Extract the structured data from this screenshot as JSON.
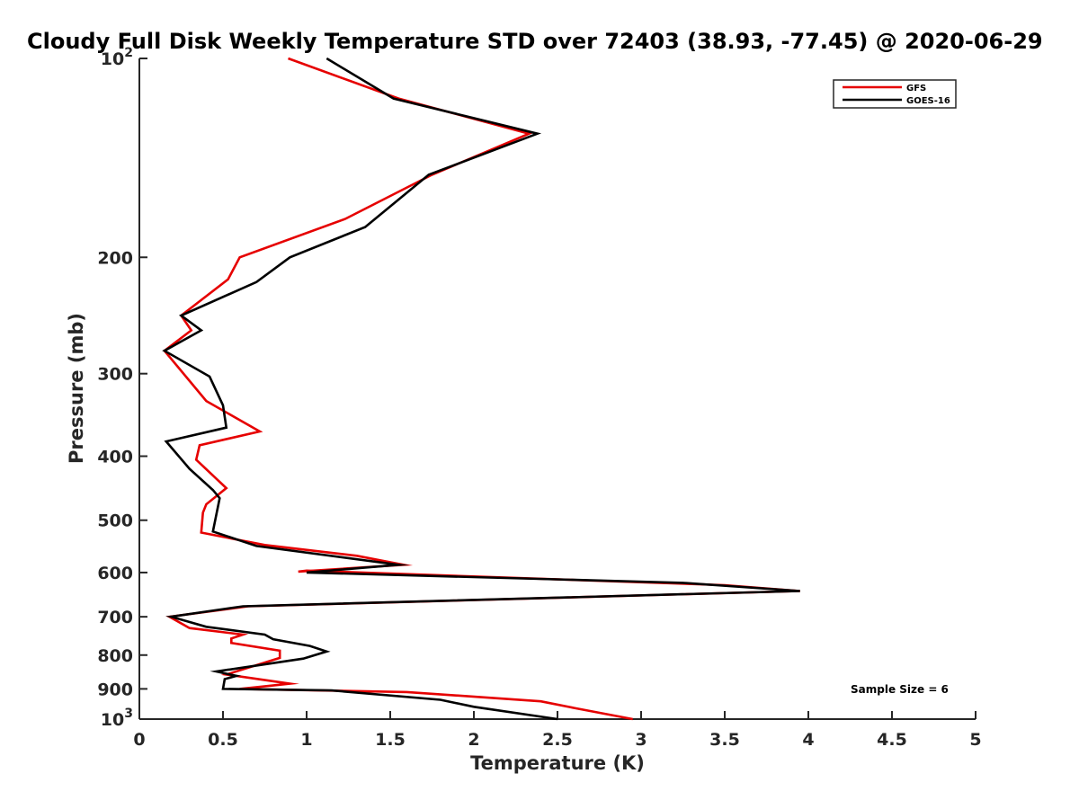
{
  "chart_data": {
    "type": "line",
    "title": "Cloudy Full Disk Weekly Temperature STD over 72403 (38.93, -77.45) @ 2020-06-29",
    "xlabel": "Temperature (K)",
    "ylabel": "Pressure (mb)",
    "xlim": [
      0,
      5
    ],
    "ylim": [
      100,
      1000
    ],
    "y_scale": "log",
    "y_reversed": true,
    "x_ticks": [
      "0",
      "0.5",
      "1",
      "1.5",
      "2",
      "2.5",
      "3",
      "3.5",
      "4",
      "4.5",
      "5"
    ],
    "y_ticks": [
      {
        "value": 100,
        "label": "10",
        "sup": "2"
      },
      {
        "value": 200,
        "label": "200",
        "sup": ""
      },
      {
        "value": 300,
        "label": "300",
        "sup": ""
      },
      {
        "value": 400,
        "label": "400",
        "sup": ""
      },
      {
        "value": 500,
        "label": "500",
        "sup": ""
      },
      {
        "value": 600,
        "label": "600",
        "sup": ""
      },
      {
        "value": 700,
        "label": "700",
        "sup": ""
      },
      {
        "value": 800,
        "label": "800",
        "sup": ""
      },
      {
        "value": 900,
        "label": "900",
        "sup": ""
      },
      {
        "value": 1000,
        "label": "10",
        "sup": "3"
      }
    ],
    "grid": false,
    "legend_position": "top-right",
    "annotation": "Sample Size = 6",
    "series": [
      {
        "name": "GFS",
        "color": "#e60000",
        "points": [
          [
            0.89,
            100
          ],
          [
            1.55,
            115
          ],
          [
            2.33,
            130
          ],
          [
            1.75,
            150
          ],
          [
            1.23,
            175
          ],
          [
            0.6,
            200
          ],
          [
            0.53,
            216
          ],
          [
            0.25,
            245
          ],
          [
            0.31,
            258
          ],
          [
            0.15,
            277
          ],
          [
            0.4,
            330
          ],
          [
            0.72,
            367
          ],
          [
            0.36,
            385
          ],
          [
            0.34,
            405
          ],
          [
            0.52,
            447
          ],
          [
            0.4,
            473
          ],
          [
            0.38,
            487
          ],
          [
            0.37,
            522
          ],
          [
            0.75,
            545
          ],
          [
            1.3,
            566
          ],
          [
            1.58,
            584
          ],
          [
            0.95,
            598
          ],
          [
            1.0,
            596
          ],
          [
            3.5,
            627
          ],
          [
            3.95,
            640
          ],
          [
            0.65,
            675
          ],
          [
            0.18,
            700
          ],
          [
            0.3,
            728
          ],
          [
            0.62,
            745
          ],
          [
            0.55,
            755
          ],
          [
            0.55,
            767
          ],
          [
            0.84,
            788
          ],
          [
            0.84,
            808
          ],
          [
            0.52,
            856
          ],
          [
            0.9,
            884
          ],
          [
            0.6,
            900
          ],
          [
            1.6,
            910
          ],
          [
            2.4,
            940
          ],
          [
            2.6,
            962
          ],
          [
            2.95,
            1000
          ]
        ]
      },
      {
        "name": "GOES-16",
        "color": "#000000",
        "points": [
          [
            1.12,
            100
          ],
          [
            1.52,
            115
          ],
          [
            2.38,
            130
          ],
          [
            1.73,
            150
          ],
          [
            1.35,
            180
          ],
          [
            0.9,
            200
          ],
          [
            0.7,
            218
          ],
          [
            0.25,
            245
          ],
          [
            0.37,
            258
          ],
          [
            0.15,
            277
          ],
          [
            0.42,
            303
          ],
          [
            0.5,
            335
          ],
          [
            0.52,
            362
          ],
          [
            0.16,
            380
          ],
          [
            0.3,
            418
          ],
          [
            0.44,
            450
          ],
          [
            0.48,
            463
          ],
          [
            0.44,
            520
          ],
          [
            0.7,
            547
          ],
          [
            1.55,
            584
          ],
          [
            1.0,
            600
          ],
          [
            3.25,
            622
          ],
          [
            3.95,
            640
          ],
          [
            0.62,
            675
          ],
          [
            0.19,
            700
          ],
          [
            0.4,
            725
          ],
          [
            0.75,
            745
          ],
          [
            0.8,
            757
          ],
          [
            1.02,
            775
          ],
          [
            1.12,
            790
          ],
          [
            0.98,
            810
          ],
          [
            0.46,
            847
          ],
          [
            0.58,
            860
          ],
          [
            0.51,
            870
          ],
          [
            0.5,
            900
          ],
          [
            1.15,
            905
          ],
          [
            1.8,
            935
          ],
          [
            2.0,
            958
          ],
          [
            2.5,
            1000
          ]
        ]
      }
    ]
  }
}
